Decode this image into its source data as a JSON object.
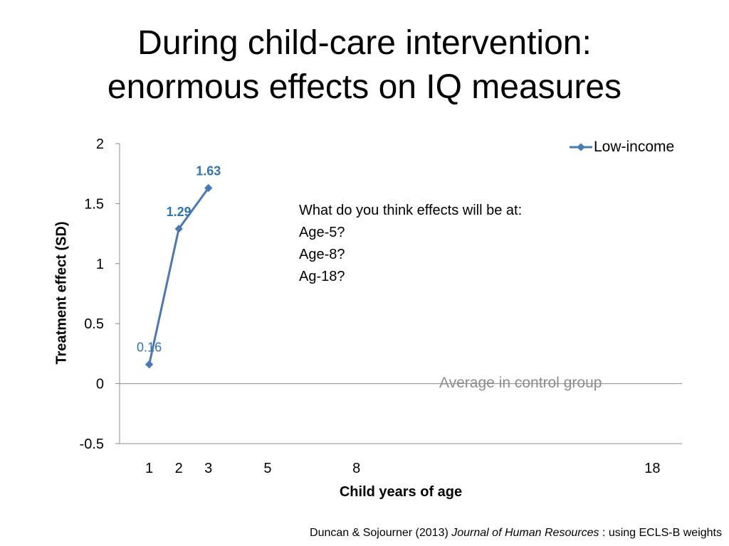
{
  "title": {
    "line1": "During child-care intervention:",
    "line2": "enormous effects on IQ measures"
  },
  "chart_data": {
    "type": "line",
    "x": [
      1,
      2,
      3
    ],
    "series": [
      {
        "name": "Low-income",
        "values": [
          0.16,
          1.29,
          1.63
        ],
        "labels": [
          "0.16",
          "1.29",
          "1.63"
        ]
      }
    ],
    "xticks": [
      1,
      2,
      3,
      5,
      8,
      18
    ],
    "xtick_labels": [
      "1",
      "2",
      "3",
      "5",
      "8",
      "18"
    ],
    "yticks": [
      2,
      1.5,
      1,
      0.5,
      0,
      -0.5
    ],
    "ytick_labels": [
      "2",
      "1.5",
      "1",
      "0.5",
      "0",
      "-0.5"
    ],
    "ylim": [
      -0.5,
      2
    ],
    "xlim": [
      0,
      19
    ],
    "xlabel": "Child years of age",
    "ylabel": "Treatment effect (SD)",
    "legend_position": "top-right",
    "reference_line": {
      "y": 0,
      "label": "Average in control group"
    },
    "annotation": {
      "heading": "What do you think effects will be at:",
      "lines": [
        "Age-5?",
        "Age-8?",
        "Ag-18?"
      ]
    }
  },
  "citation": {
    "authors": "Duncan & Sojourner (2013)",
    "journal": "Journal of Human Resources",
    "note": ": using ECLS-B weights"
  },
  "colors": {
    "series": "#4a78b4",
    "label_strong": "#2e75b6",
    "axis": "#8c8c8c",
    "control_text": "#8c8c8c"
  }
}
